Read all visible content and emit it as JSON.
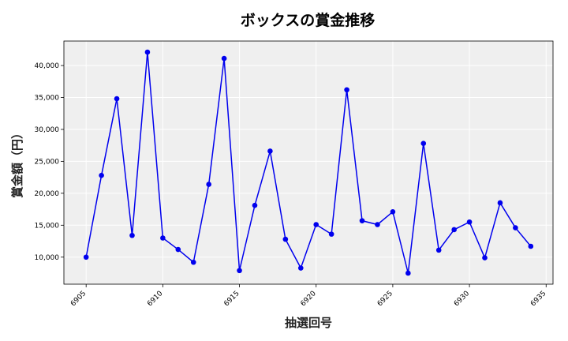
{
  "chart_data": {
    "type": "line",
    "title": "ボックスの賞金推移",
    "xlabel": "抽選回号",
    "ylabel": "賞金額（円）",
    "x": [
      6905,
      6906,
      6907,
      6908,
      6909,
      6910,
      6911,
      6912,
      6913,
      6914,
      6915,
      6916,
      6917,
      6918,
      6919,
      6920,
      6921,
      6922,
      6923,
      6924,
      6925,
      6926,
      6927,
      6928,
      6929,
      6930,
      6931,
      6932,
      6933,
      6934
    ],
    "series": [
      {
        "values": [
          10000,
          22800,
          34800,
          13400,
          42100,
          13000,
          11200,
          9200,
          21400,
          41100,
          7900,
          18100,
          26600,
          12800,
          8300,
          15100,
          13600,
          36200,
          15700,
          15100,
          17100,
          7500,
          27800,
          11100,
          14300,
          15500,
          9900,
          18500,
          14600,
          11700
        ],
        "color": "#0000ee"
      }
    ],
    "xticks": [
      6905,
      6910,
      6915,
      6920,
      6925,
      6930,
      6935
    ],
    "xtick_labels": [
      "6905",
      "6910",
      "6915",
      "6920",
      "6925",
      "6930",
      "6935"
    ],
    "yticks": [
      10000,
      15000,
      20000,
      25000,
      30000,
      35000,
      40000
    ],
    "ytick_labels": [
      "10,000",
      "15,000",
      "20,000",
      "25,000",
      "30,000",
      "35,000",
      "40,000"
    ],
    "xlim": [
      6903.55,
      6935.45
    ],
    "ylim": [
      5770,
      43830
    ],
    "grid": true,
    "background": "#efefef"
  }
}
